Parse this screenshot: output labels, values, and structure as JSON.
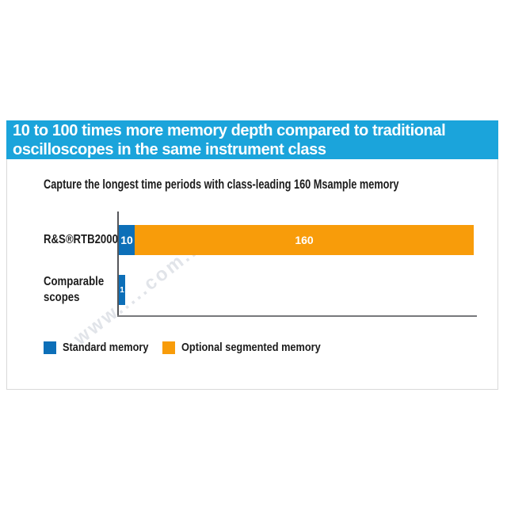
{
  "banner": {
    "line1": "10 to 100 times more memory depth compared to traditional",
    "line2": "oscilloscopes in the same instrument class",
    "bg_color": "#1ba4db",
    "text_color": "#ffffff"
  },
  "subtitle": "Capture the longest time periods with class-leading 160 Msample memory",
  "watermark": "www.....com.h",
  "card": {
    "border_color": "#d9d9d9",
    "background": "#ffffff"
  },
  "chart_data": {
    "type": "bar",
    "orientation": "horizontal",
    "title": "Capture the longest time periods with class-leading 160 Msample memory",
    "categories": [
      "R&S®RTB2000",
      "Comparable scopes"
    ],
    "category_lines": [
      [
        "R&S®RTB2000"
      ],
      [
        "Comparable",
        "scopes"
      ]
    ],
    "series": [
      {
        "name": "Standard memory",
        "color": "#0d6fb8",
        "values": [
          10,
          1
        ]
      },
      {
        "name": "Optional segmented memory",
        "color": "#f89c0a",
        "values": [
          160,
          0
        ]
      }
    ],
    "unit": "Msample",
    "grid": false,
    "axis_color": "#55565a",
    "legend_position": "bottom"
  },
  "legend": {
    "items": [
      {
        "label": "Standard memory",
        "color": "#0d6fb8"
      },
      {
        "label": "Optional segmented memory",
        "color": "#f89c0a"
      }
    ]
  }
}
